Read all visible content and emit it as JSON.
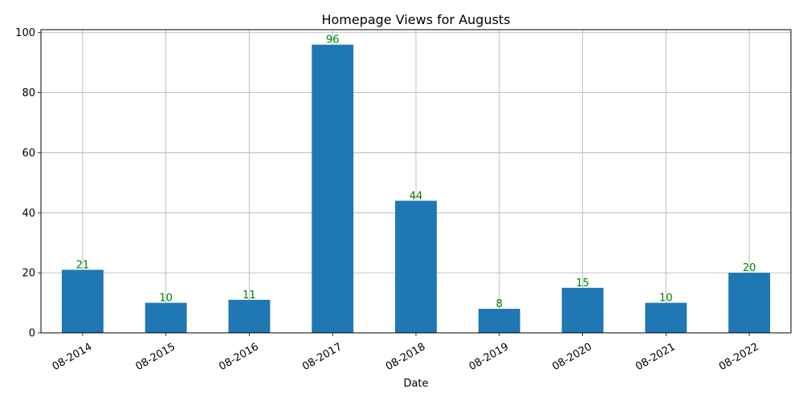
{
  "chart_data": {
    "type": "bar",
    "title": "Homepage Views for Augusts",
    "xlabel": "Date",
    "ylabel": "",
    "categories": [
      "08-2014",
      "08-2015",
      "08-2016",
      "08-2017",
      "08-2018",
      "08-2019",
      "08-2020",
      "08-2021",
      "08-2022"
    ],
    "values": [
      21,
      10,
      11,
      96,
      44,
      8,
      15,
      10,
      20
    ],
    "ylim": [
      0,
      101
    ],
    "yticks": [
      0,
      20,
      40,
      60,
      80,
      100
    ],
    "grid": true,
    "legend": "none",
    "bar_color": "#1f77b4",
    "label_color": "#008000",
    "tick_rotation": 30
  }
}
